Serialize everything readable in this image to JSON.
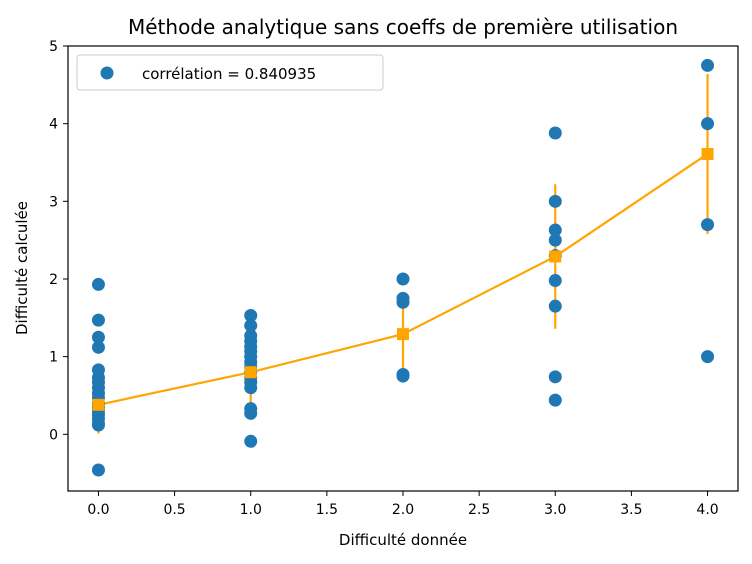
{
  "chart_data": {
    "type": "scatter",
    "title": "Méthode analytique sans coeffs de première utilisation",
    "xlabel": "Difficulté donnée",
    "ylabel": "Difficulté calculée",
    "xlim": [
      -0.2,
      4.2
    ],
    "ylim": [
      -0.73,
      5.0
    ],
    "xticks": [
      0.0,
      0.5,
      1.0,
      1.5,
      2.0,
      2.5,
      3.0,
      3.5,
      4.0
    ],
    "xtick_labels": [
      "0.0",
      "0.5",
      "1.0",
      "1.5",
      "2.0",
      "2.5",
      "3.0",
      "3.5",
      "4.0"
    ],
    "yticks": [
      0,
      1,
      2,
      3,
      4,
      5
    ],
    "ytick_labels": [
      "0",
      "1",
      "2",
      "3",
      "4",
      "5"
    ],
    "legend": {
      "label": "corrélation = 0.840935",
      "position": "upper left"
    },
    "grid": false,
    "scatter": {
      "color": "#1f77b4",
      "points": [
        [
          0,
          -0.46
        ],
        [
          0,
          0.12
        ],
        [
          0,
          0.14
        ],
        [
          0,
          0.2
        ],
        [
          0,
          0.25
        ],
        [
          0,
          0.3
        ],
        [
          0,
          0.35
        ],
        [
          0,
          0.4
        ],
        [
          0,
          0.47
        ],
        [
          0,
          0.53
        ],
        [
          0,
          0.6
        ],
        [
          0,
          0.67
        ],
        [
          0,
          0.73
        ],
        [
          0,
          0.83
        ],
        [
          0,
          1.12
        ],
        [
          0,
          1.25
        ],
        [
          0,
          1.47
        ],
        [
          0,
          1.93
        ],
        [
          1,
          -0.09
        ],
        [
          1,
          0.27
        ],
        [
          1,
          0.33
        ],
        [
          1,
          0.6
        ],
        [
          1,
          0.67
        ],
        [
          1,
          0.73
        ],
        [
          1,
          0.8
        ],
        [
          1,
          0.87
        ],
        [
          1,
          0.93
        ],
        [
          1,
          1.0
        ],
        [
          1,
          1.07
        ],
        [
          1,
          1.13
        ],
        [
          1,
          1.2
        ],
        [
          1,
          1.27
        ],
        [
          1,
          1.4
        ],
        [
          1,
          1.53
        ],
        [
          2,
          0.75
        ],
        [
          2,
          0.77
        ],
        [
          2,
          1.7
        ],
        [
          2,
          1.75
        ],
        [
          2,
          2.0
        ],
        [
          3,
          0.44
        ],
        [
          3,
          0.74
        ],
        [
          3,
          1.65
        ],
        [
          3,
          1.98
        ],
        [
          3,
          2.3
        ],
        [
          3,
          2.5
        ],
        [
          3,
          2.63
        ],
        [
          3,
          3.0
        ],
        [
          3,
          3.88
        ],
        [
          4,
          1.0
        ],
        [
          4,
          2.7
        ],
        [
          4,
          4.0
        ],
        [
          4,
          4.75
        ]
      ]
    },
    "mean_series": {
      "color": "#ffa500",
      "x": [
        0,
        1,
        2,
        3,
        4
      ],
      "y": [
        0.38,
        0.8,
        1.29,
        2.29,
        3.61
      ],
      "err": [
        0.37,
        0.4,
        0.5,
        0.93,
        1.03
      ]
    }
  }
}
